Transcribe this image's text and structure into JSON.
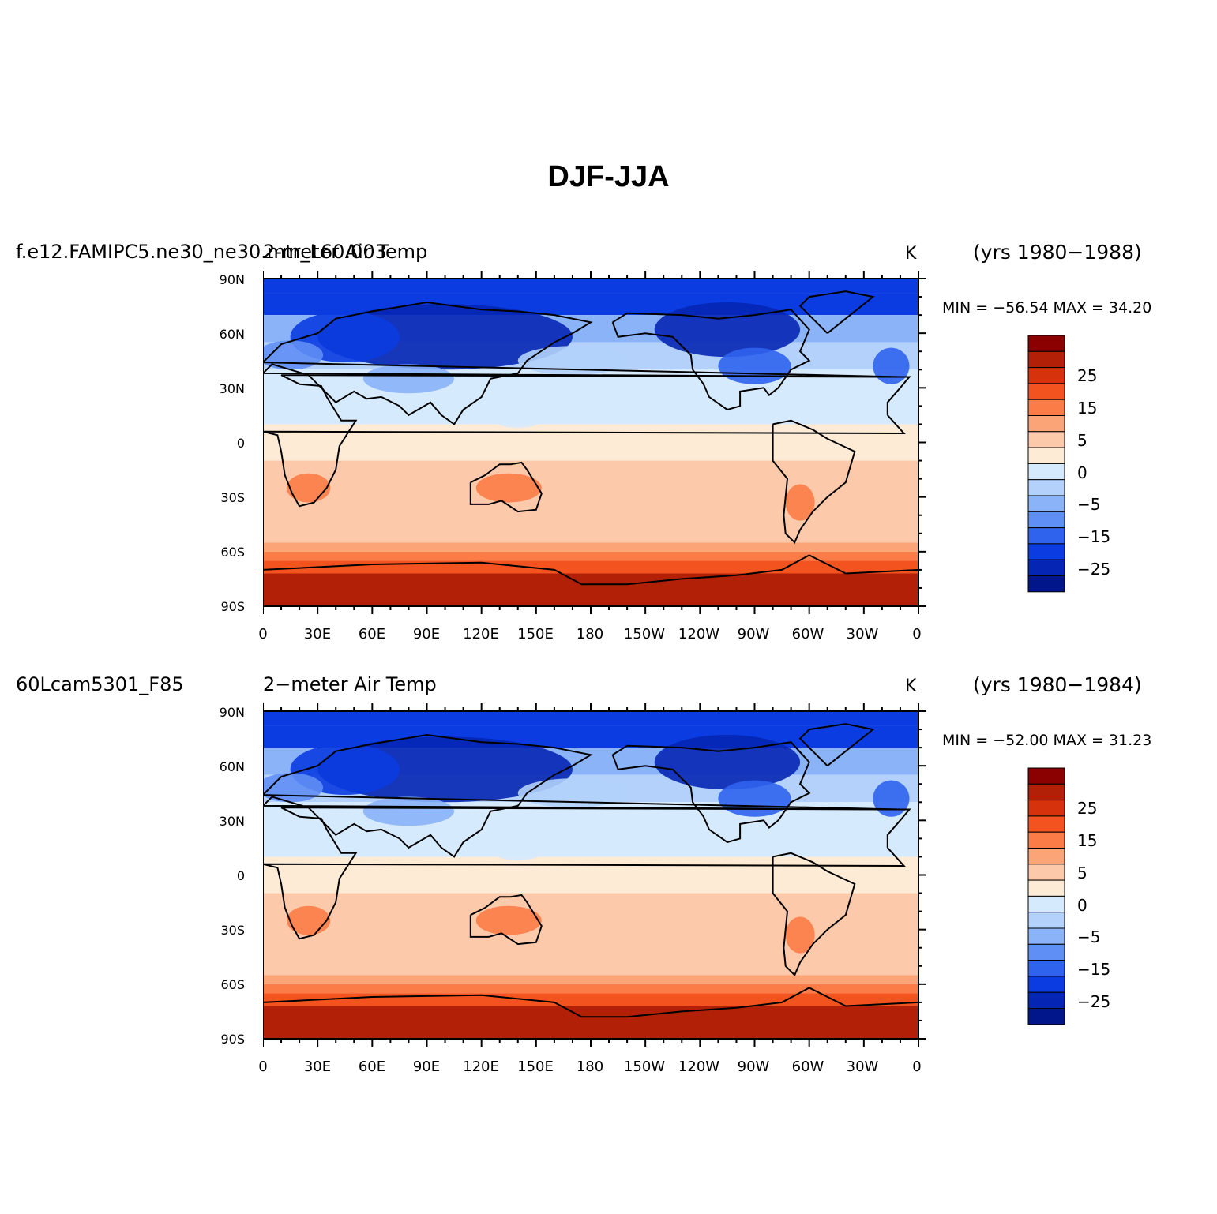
{
  "title": "DJF-JJA",
  "chart_data": [
    {
      "type": "heatmap",
      "case": "f.e12.FAMIPC5.ne30_ne30.mtr_L60.003",
      "variable": "2-meter Air Temp",
      "units": "K",
      "years": "(yrs 1980−1988)",
      "minmax": "MIN = −56.54  MAX =  34.20",
      "min": -56.54,
      "max": 34.2
    },
    {
      "type": "heatmap",
      "case": "60Lcam5301_F85",
      "variable": "2−meter Air Temp",
      "units": "K",
      "years": "(yrs 1980−1984)",
      "minmax": "MIN = −52.00  MAX =  31.23",
      "min": -52.0,
      "max": 31.23
    }
  ],
  "axes": {
    "lat_ticks": [
      "90N",
      "60N",
      "30N",
      "0",
      "30S",
      "60S",
      "90S"
    ],
    "lon_ticks": [
      "0",
      "30E",
      "60E",
      "90E",
      "120E",
      "150E",
      "180",
      "150W",
      "120W",
      "90W",
      "60W",
      "30W",
      "0"
    ]
  },
  "colorbar": {
    "colors": [
      "#8b0000",
      "#b22007",
      "#d6320b",
      "#f2531f",
      "#fb7c47",
      "#fba477",
      "#fdc9ab",
      "#fdebd6",
      "#d6eafd",
      "#b3d1fb",
      "#8ab3f8",
      "#5f8ef5",
      "#2f63ee",
      "#0b3ce1",
      "#0526b4",
      "#00168a"
    ],
    "labels": [
      "25",
      "15",
      "5",
      "0",
      "−5",
      "−15",
      "−25"
    ]
  }
}
